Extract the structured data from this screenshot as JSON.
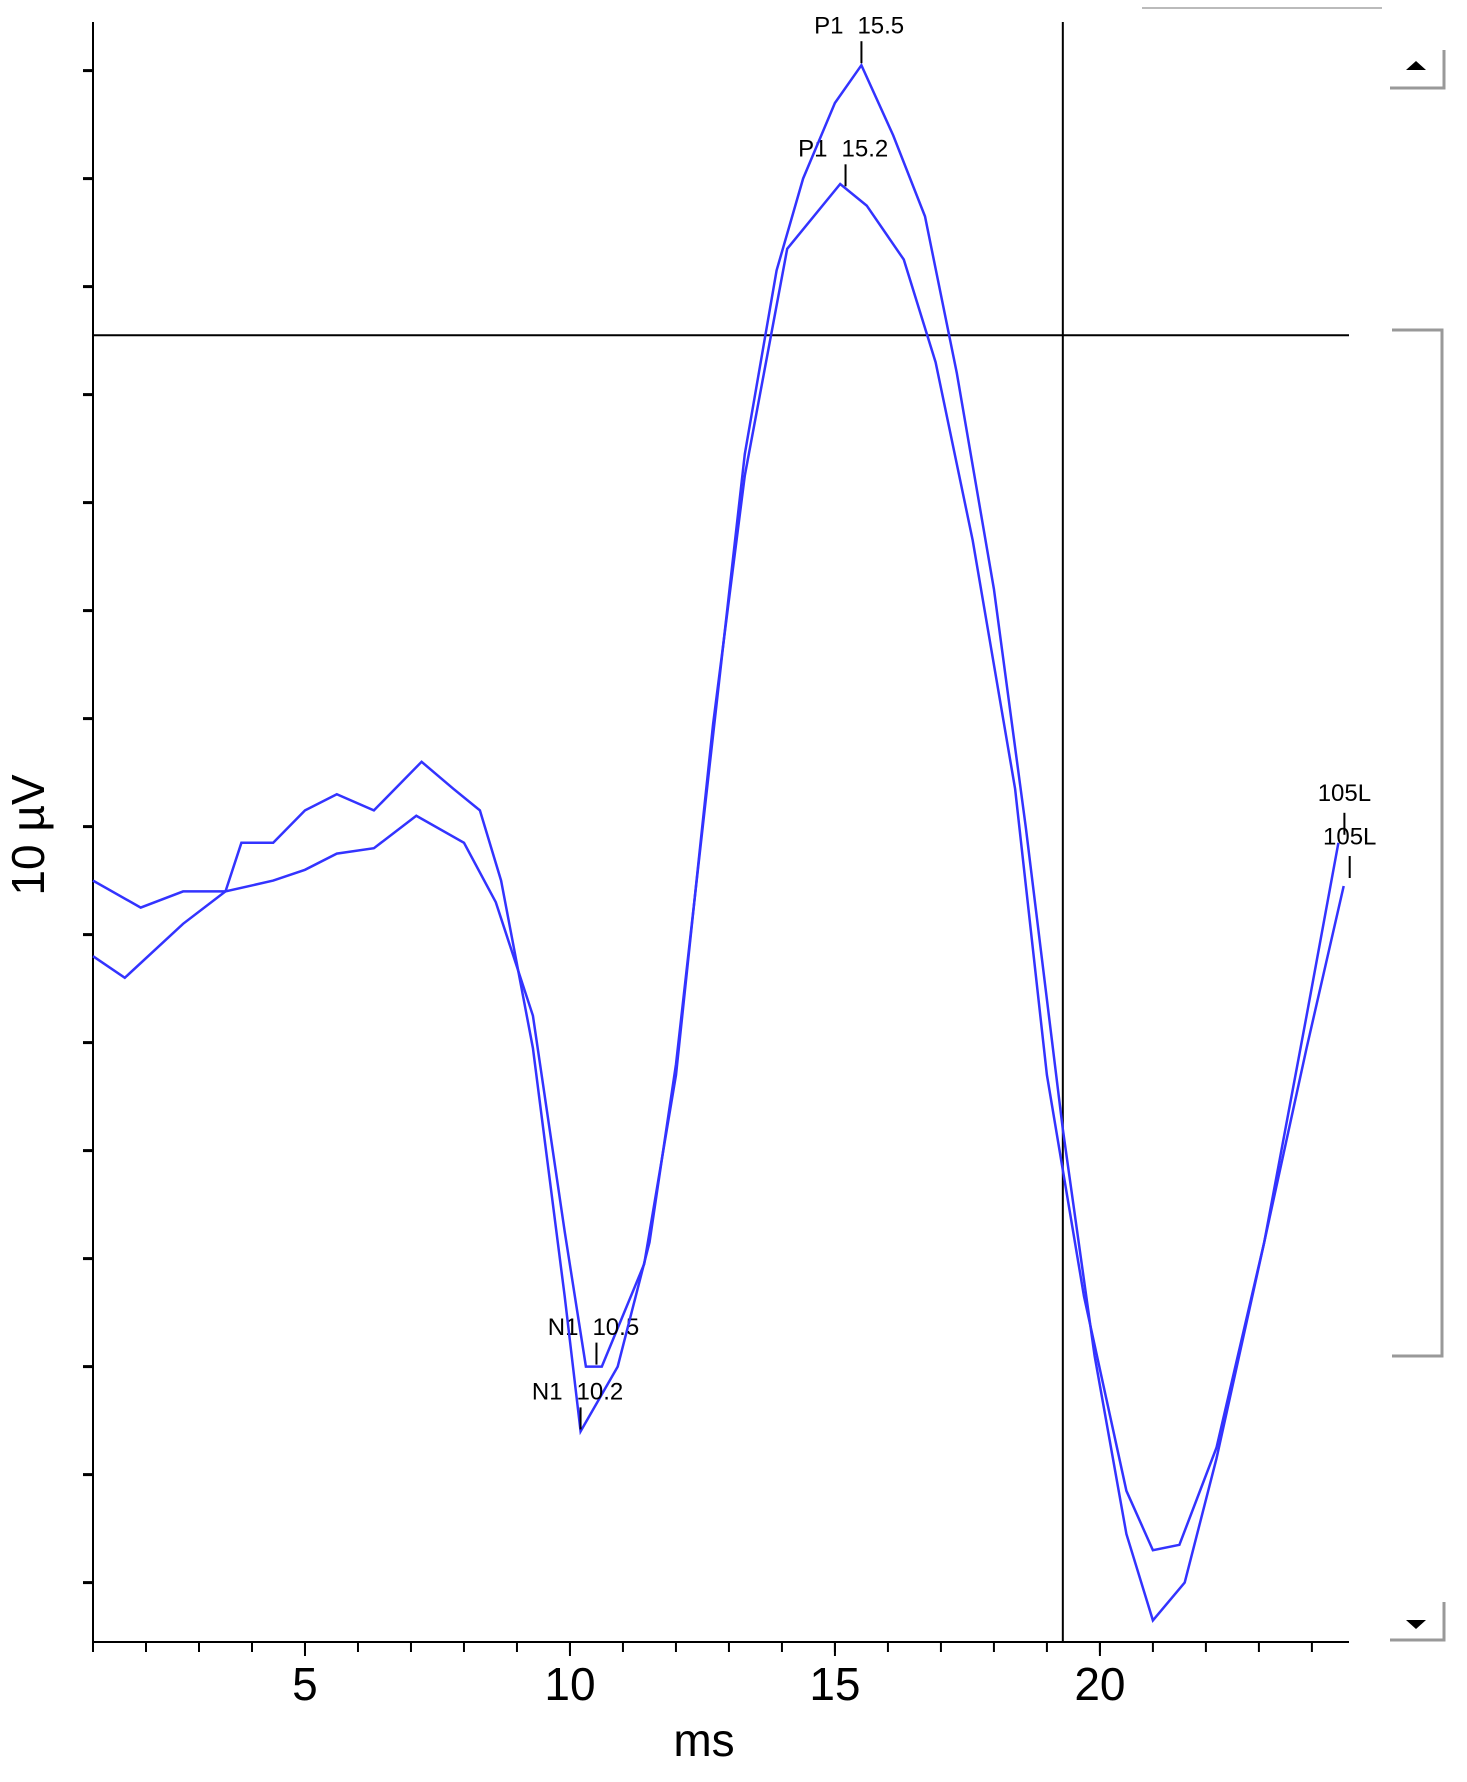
{
  "chart_data": {
    "type": "line",
    "x_label": "ms",
    "y_label": "10 µV",
    "xlim": [
      1,
      24.7
    ],
    "ylim": [
      -15.1,
      14.9
    ],
    "xticks": [
      5,
      10,
      15,
      20
    ],
    "minor_xticks": [
      1,
      2,
      3,
      4,
      5,
      6,
      7,
      8,
      9,
      10,
      11,
      12,
      13,
      14,
      15,
      16,
      17,
      18,
      19,
      20,
      21,
      22,
      23,
      24
    ],
    "yticks": [
      -14,
      -12,
      -10,
      -8,
      -6,
      -4,
      -2,
      0,
      2,
      4,
      6,
      8,
      10,
      12,
      14
    ],
    "cursor": {
      "x": 19.3,
      "y": 9.1
    },
    "series": [
      {
        "name": "105L",
        "color": "#3333ff",
        "x": [
          1.0,
          1.9,
          2.7,
          3.5,
          4.4,
          5.0,
          5.6,
          6.3,
          7.1,
          8.0,
          8.6,
          9.3,
          9.9,
          10.3,
          10.6,
          11.4,
          12.0,
          12.7,
          13.3,
          14.1,
          15.1,
          15.6,
          16.3,
          16.9,
          17.6,
          18.4,
          19.0,
          19.7,
          20.5,
          21.0,
          21.5,
          22.2,
          23.1,
          23.9,
          24.6
        ],
        "values": [
          -1.0,
          -1.5,
          -1.2,
          -1.2,
          -1.0,
          -0.8,
          -0.5,
          -0.4,
          0.2,
          -0.3,
          -1.4,
          -3.5,
          -7.5,
          -10.0,
          -10.0,
          -8.1,
          -4.6,
          1.9,
          6.5,
          10.7,
          11.9,
          11.5,
          10.5,
          8.6,
          5.3,
          0.7,
          -4.6,
          -8.7,
          -12.3,
          -13.4,
          -13.3,
          -11.5,
          -7.7,
          -4.1,
          -1.1
        ],
        "peaks": [
          {
            "label": "N1",
            "latency": 10.5
          },
          {
            "label": "P1",
            "latency": 15.2
          }
        ]
      },
      {
        "name": "105L",
        "color": "#3333ff",
        "x": [
          1.0,
          1.6,
          2.7,
          3.5,
          3.8,
          4.4,
          5.0,
          5.6,
          6.3,
          7.2,
          7.8,
          8.3,
          8.7,
          9.3,
          9.9,
          10.2,
          10.9,
          11.5,
          12.0,
          12.7,
          13.3,
          13.9,
          14.4,
          15.0,
          15.5,
          16.1,
          16.7,
          17.3,
          18.0,
          18.6,
          19.3,
          19.9,
          20.5,
          21.0,
          21.6,
          22.2,
          23.1,
          23.9,
          24.5
        ],
        "values": [
          -2.4,
          -2.8,
          -1.8,
          -1.2,
          -0.3,
          -0.3,
          0.3,
          0.6,
          0.3,
          1.2,
          0.7,
          0.3,
          -1.0,
          -4.1,
          -8.7,
          -11.2,
          -10.0,
          -7.7,
          -4.4,
          1.7,
          6.9,
          10.3,
          12.0,
          13.4,
          14.1,
          12.8,
          11.3,
          8.4,
          4.4,
          0.0,
          -5.6,
          -9.8,
          -13.1,
          -14.7,
          -14.0,
          -11.7,
          -7.7,
          -3.5,
          -0.3
        ],
        "peaks": [
          {
            "label": "N1",
            "latency": 10.2
          },
          {
            "label": "P1",
            "latency": 15.5
          }
        ]
      }
    ]
  }
}
